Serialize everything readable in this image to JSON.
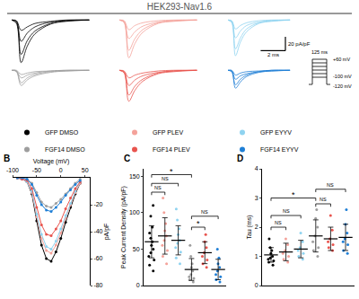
{
  "chart_data": [
    {
      "type": "line",
      "title": "HEK293-Nav1.6",
      "x": [
        0,
        0.3,
        0.6,
        1,
        1.5,
        2.5,
        3.5,
        5
      ],
      "xlim": [
        -0.3,
        5.5
      ],
      "ylim": [
        -65,
        3
      ],
      "tick_labels": false,
      "scale_bar": {
        "x": 2,
        "y": 20,
        "x_label": "2 ms",
        "y_label": "20 pA/pF"
      },
      "protocol": {
        "top": "+60 mV",
        "step": "-100 mV",
        "hold": "-120 mV",
        "duration": "125 ms"
      },
      "panels": [
        {
          "name": "GFP DMSO",
          "color": "#000000",
          "series": [
            [
              0,
              -5,
              -62,
              -38,
              -20,
              -6,
              -2,
              0
            ],
            [
              0,
              -3,
              -50,
              -30,
              -16,
              -5,
              -1,
              0
            ],
            [
              0,
              -2,
              -31,
              -19,
              -10,
              -3,
              -1,
              0
            ],
            [
              0,
              -1,
              -15,
              -10,
              -5,
              -2,
              0,
              0
            ]
          ]
        },
        {
          "name": "GFP PLEV",
          "color": "#f4a29a",
          "series": [
            [
              0,
              -4,
              -55,
              -34,
              -18,
              -5,
              -2,
              0
            ],
            [
              0,
              -3,
              -44,
              -27,
              -14,
              -4,
              -1,
              0
            ],
            [
              0,
              -2,
              -27,
              -17,
              -9,
              -3,
              -1,
              0
            ],
            [
              0,
              -1,
              -14,
              -8,
              -4,
              -1,
              0,
              0
            ]
          ]
        },
        {
          "name": "GFP EYYV",
          "color": "#8fd3f0",
          "series": [
            [
              0,
              -4,
              -52,
              -32,
              -17,
              -5,
              -2,
              0
            ],
            [
              0,
              -3,
              -42,
              -26,
              -13,
              -4,
              -1,
              0
            ],
            [
              0,
              -2,
              -26,
              -16,
              -8,
              -3,
              -1,
              0
            ],
            [
              0,
              -1,
              -13,
              -8,
              -4,
              -1,
              0,
              0
            ]
          ]
        },
        {
          "name": "FGF14 DMSO",
          "color": "#9e9e9e",
          "series": [
            [
              0,
              -2,
              -22,
              -14,
              -8,
              -3,
              -1,
              0
            ],
            [
              0,
              -1,
              -18,
              -11,
              -6,
              -2,
              -1,
              0
            ],
            [
              0,
              -1,
              -11,
              -7,
              -4,
              -1,
              0,
              0
            ],
            [
              0,
              0,
              -6,
              -4,
              -2,
              -1,
              0,
              0
            ]
          ]
        },
        {
          "name": "FGF14 PLEV",
          "color": "#e8544e",
          "series": [
            [
              0,
              -4,
              -45,
              -29,
              -16,
              -5,
              -2,
              0
            ],
            [
              0,
              -3,
              -36,
              -23,
              -13,
              -4,
              -1,
              0
            ],
            [
              0,
              -2,
              -22,
              -14,
              -8,
              -3,
              -1,
              0
            ],
            [
              0,
              -1,
              -11,
              -7,
              -4,
              -1,
              0,
              0
            ]
          ]
        },
        {
          "name": "FGF14 EYYV",
          "color": "#1f7fd6",
          "series": [
            [
              0,
              -2,
              -26,
              -17,
              -9,
              -3,
              -1,
              0
            ],
            [
              0,
              -2,
              -21,
              -13,
              -7,
              -2,
              -1,
              0
            ],
            [
              0,
              -1,
              -13,
              -8,
              -5,
              -2,
              0,
              0
            ],
            [
              0,
              0,
              -7,
              -4,
              -2,
              -1,
              0,
              0
            ]
          ]
        }
      ]
    },
    {
      "type": "line",
      "label": "B",
      "xlabel": "Voltage (mV)",
      "ylabel": "pA/pF",
      "marker": "circle",
      "x": [
        -90,
        -80,
        -70,
        -60,
        -50,
        -40,
        -30,
        -20,
        -10,
        0,
        10,
        20,
        30,
        40
      ],
      "xlim": [
        -100,
        60
      ],
      "xticks": [
        -100,
        -50,
        0,
        50
      ],
      "ylim": [
        -80,
        0
      ],
      "yticks": [
        -80,
        -60,
        -40,
        -20
      ],
      "series": [
        {
          "name": "GFP DMSO",
          "color": "#000000",
          "values": [
            0,
            -1,
            -3,
            -12,
            -32,
            -50,
            -60,
            -62,
            -55,
            -45,
            -33,
            -22,
            -12,
            -4
          ]
        },
        {
          "name": "GFP PLEV",
          "color": "#f4a29a",
          "values": [
            0,
            -1,
            -3,
            -11,
            -29,
            -45,
            -54,
            -56,
            -50,
            -41,
            -30,
            -20,
            -11,
            -4
          ]
        },
        {
          "name": "GFP EYYV",
          "color": "#8fd3f0",
          "values": [
            0,
            -1,
            -3,
            -10,
            -27,
            -42,
            -51,
            -53,
            -47,
            -38,
            -28,
            -19,
            -10,
            -3
          ]
        },
        {
          "name": "FGF14 DMSO",
          "color": "#9e9e9e",
          "values": [
            0,
            0,
            -1,
            -4,
            -11,
            -18,
            -21,
            -22,
            -19,
            -16,
            -12,
            -8,
            -4,
            -1
          ]
        },
        {
          "name": "FGF14 PLEV",
          "color": "#e8544e",
          "values": [
            0,
            -1,
            -2,
            -8,
            -22,
            -35,
            -42,
            -43,
            -38,
            -32,
            -23,
            -15,
            -8,
            -3
          ]
        },
        {
          "name": "FGF14 EYYV",
          "color": "#1f7fd6",
          "values": [
            0,
            0,
            -1,
            -5,
            -13,
            -20,
            -24,
            -25,
            -22,
            -18,
            -13,
            -9,
            -5,
            -2
          ]
        }
      ]
    },
    {
      "type": "scatter",
      "label": "C",
      "ylabel": "Peak Current Density (pA/pF)",
      "tick_labels": "y",
      "ylim": [
        0,
        160
      ],
      "yticks": [
        0,
        50,
        100,
        150
      ],
      "series": [
        {
          "name": "GFP DMSO",
          "color": "#000000",
          "values": [
            110,
            95,
            80,
            72,
            65,
            60,
            55,
            50,
            45,
            40,
            35,
            28,
            20
          ],
          "mean": 60,
          "error": 22
        },
        {
          "name": "GFP PLEV",
          "color": "#f4a29a",
          "values": [
            120,
            100,
            85,
            75,
            68,
            62,
            55,
            48,
            40,
            30
          ],
          "mean": 68,
          "error": 25
        },
        {
          "name": "GFP EYYV",
          "color": "#8fd3f0",
          "values": [
            105,
            90,
            78,
            70,
            62,
            58,
            52,
            46,
            38,
            30
          ],
          "mean": 62,
          "error": 20
        },
        {
          "name": "FGF14 DMSO",
          "color": "#9e9e9e",
          "values": [
            55,
            40,
            30,
            25,
            20,
            15,
            12,
            10,
            8,
            5
          ],
          "mean": 22,
          "error": 15
        },
        {
          "name": "FGF14 PLEV",
          "color": "#e8544e",
          "values": [
            70,
            60,
            52,
            45,
            40,
            35,
            30,
            25
          ],
          "mean": 45,
          "error": 15
        },
        {
          "name": "FGF14 EYYV",
          "color": "#1f7fd6",
          "values": [
            50,
            38,
            30,
            25,
            20,
            15,
            12,
            8,
            5
          ],
          "mean": 22,
          "error": 14
        }
      ],
      "comparisons": [
        {
          "from": 0,
          "to": 1,
          "label": "NS",
          "y": 128
        },
        {
          "from": 0,
          "to": 2,
          "label": "NS",
          "y": 140
        },
        {
          "from": 0,
          "to": 3,
          "label": "*",
          "y": 152
        },
        {
          "from": 3,
          "to": 4,
          "label": "*",
          "y": 80
        },
        {
          "from": 3,
          "to": 5,
          "label": "NS",
          "y": 95
        }
      ]
    },
    {
      "type": "scatter",
      "label": "D",
      "ylabel": "Tau (ms)",
      "tick_labels": "y",
      "ylim": [
        0,
        4
      ],
      "yticks": [
        0,
        1,
        2,
        3,
        4
      ],
      "series": [
        {
          "name": "GFP DMSO",
          "color": "#000000",
          "values": [
            1.6,
            1.3,
            1.2,
            1.1,
            1.0,
            0.95,
            0.9,
            0.85,
            0.8,
            0.7
          ],
          "mean": 1.05,
          "error": 0.25
        },
        {
          "name": "GFP PLEV",
          "color": "#f4a29a",
          "values": [
            1.6,
            1.4,
            1.2,
            1.1,
            1.0,
            0.9,
            0.8
          ],
          "mean": 1.15,
          "error": 0.3
        },
        {
          "name": "GFP EYYV",
          "color": "#8fd3f0",
          "values": [
            1.8,
            1.5,
            1.3,
            1.2,
            1.1,
            1.0,
            0.9
          ],
          "mean": 1.25,
          "error": 0.3
        },
        {
          "name": "FGF14 DMSO",
          "color": "#9e9e9e",
          "values": [
            2.6,
            2.3,
            2.0,
            1.7,
            1.5,
            1.3,
            1.2,
            1.0
          ],
          "mean": 1.7,
          "error": 0.55
        },
        {
          "name": "FGF14 PLEV",
          "color": "#e8544e",
          "values": [
            2.4,
            1.9,
            1.6,
            1.5,
            1.4,
            1.3,
            1.2
          ],
          "mean": 1.6,
          "error": 0.4
        },
        {
          "name": "FGF14 EYYV",
          "color": "#1f7fd6",
          "values": [
            2.6,
            2.1,
            1.8,
            1.6,
            1.5,
            1.4,
            1.2,
            1.1
          ],
          "mean": 1.65,
          "error": 0.45
        }
      ],
      "comparisons": [
        {
          "from": 0,
          "to": 1,
          "label": "NS",
          "y": 2.0
        },
        {
          "from": 0,
          "to": 2,
          "label": "NS",
          "y": 2.4
        },
        {
          "from": 0,
          "to": 3,
          "label": "*",
          "y": 3.0
        },
        {
          "from": 3,
          "to": 4,
          "label": "NS",
          "y": 2.8
        },
        {
          "from": 3,
          "to": 5,
          "label": "NS",
          "y": 3.3
        }
      ]
    }
  ]
}
